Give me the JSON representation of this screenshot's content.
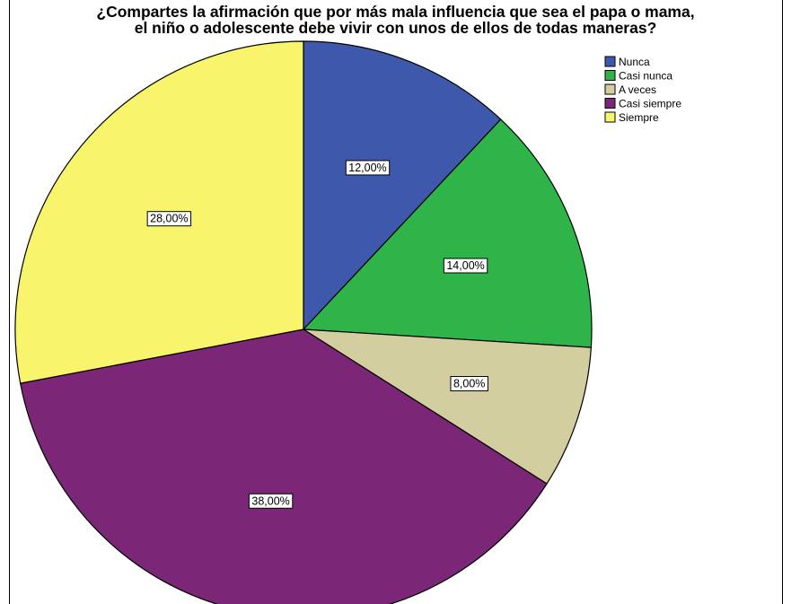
{
  "chart_data": {
    "type": "pie",
    "title_lines": [
      "¿Compartes la afirmación que por más mala influencia que sea el papa o mama,",
      "el niño o adolescente debe vivir con unos de ellos de todas maneras?"
    ],
    "categories": [
      "Nunca",
      "Casi nunca",
      "A veces",
      "Casi siempre",
      "Siempre"
    ],
    "values": [
      12.0,
      14.0,
      8.0,
      38.0,
      28.0
    ],
    "labels": [
      "12,00%",
      "14,00%",
      "8,00%",
      "38,00%",
      "28,00%"
    ],
    "colors": [
      "#3e58ac",
      "#2fb44a",
      "#d3cea0",
      "#7b2677",
      "#f8f46c"
    ],
    "start_angle": "12 o'clock",
    "direction": "clockwise",
    "legend_position": "top-right"
  }
}
